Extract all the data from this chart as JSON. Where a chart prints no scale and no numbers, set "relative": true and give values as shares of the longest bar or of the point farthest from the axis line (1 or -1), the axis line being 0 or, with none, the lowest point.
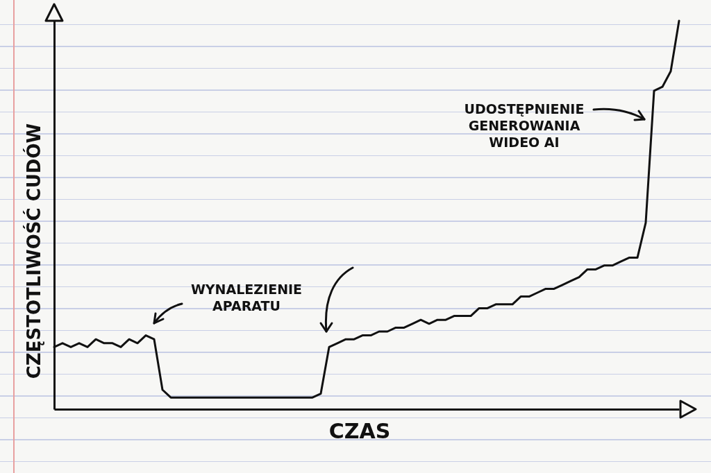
{
  "chart_data": {
    "type": "line",
    "relative": true,
    "xlabel": "CZAS",
    "ylabel": "CZĘSTOTLIWOŚĆ CUDÓW",
    "color": "#111111",
    "categories": [
      null,
      null,
      null,
      null,
      null,
      null,
      null,
      null,
      null,
      null,
      null,
      null,
      null,
      null,
      null,
      null,
      null,
      null,
      null,
      null,
      null,
      null,
      null,
      null,
      null,
      null,
      null,
      null,
      null,
      null,
      null,
      null,
      null,
      null,
      null,
      null,
      null,
      null,
      null,
      null,
      null,
      null,
      null,
      null,
      null,
      null,
      null,
      null,
      null,
      null,
      null,
      null,
      null,
      null,
      null,
      null,
      null,
      null,
      null,
      null,
      null,
      null,
      null,
      null,
      null,
      null,
      null,
      null,
      null,
      null,
      null,
      null,
      null,
      null,
      null,
      null
    ],
    "values": [
      0.16,
      0.17,
      0.16,
      0.17,
      0.16,
      0.18,
      0.17,
      0.17,
      0.16,
      0.18,
      0.17,
      0.19,
      0.18,
      0.05,
      0.03,
      0.03,
      0.03,
      0.03,
      0.03,
      0.03,
      0.03,
      0.03,
      0.03,
      0.03,
      0.03,
      0.03,
      0.03,
      0.03,
      0.03,
      0.03,
      0.03,
      0.03,
      0.04,
      0.16,
      0.17,
      0.18,
      0.18,
      0.19,
      0.19,
      0.2,
      0.2,
      0.21,
      0.21,
      0.22,
      0.23,
      0.22,
      0.23,
      0.23,
      0.24,
      0.24,
      0.24,
      0.26,
      0.26,
      0.27,
      0.27,
      0.27,
      0.29,
      0.29,
      0.3,
      0.31,
      0.31,
      0.32,
      0.33,
      0.34,
      0.36,
      0.36,
      0.37,
      0.37,
      0.38,
      0.39,
      0.39,
      0.48,
      0.82,
      0.83,
      0.87,
      1
    ],
    "annotations": [
      "WYNALEZIENIE\nAPARATU",
      "UDOSTĘPNIENIE\nGENEROWANIA\nWIDEO AI"
    ]
  }
}
